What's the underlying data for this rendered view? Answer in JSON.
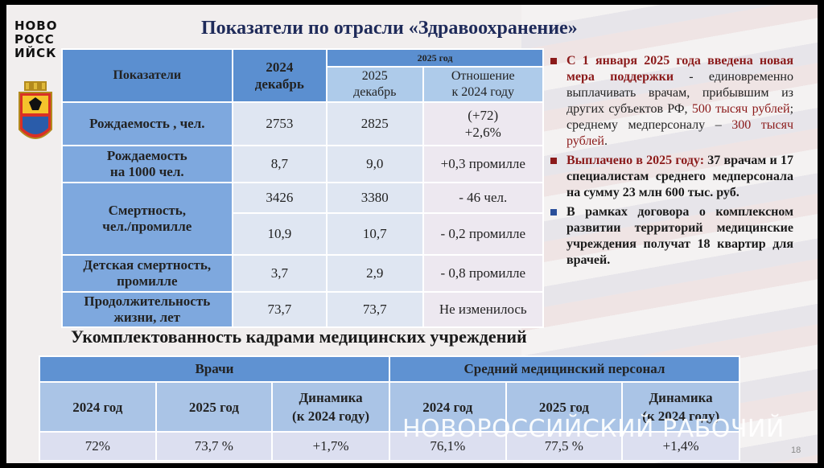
{
  "logo": {
    "lines": [
      "НОВО",
      "РОСС",
      "ИЙСК"
    ]
  },
  "title": "Показатели по отрасли «Здравоохранение»",
  "main_table": {
    "header": {
      "indicators": "Показатели",
      "col_2024": [
        "2024",
        "декабрь"
      ],
      "year_2025_group": "2025 год",
      "col_2025": [
        "2025",
        "декабрь"
      ],
      "col_change": [
        "Отношение",
        "к 2024 году"
      ]
    },
    "rows": [
      {
        "label": [
          "Рождаемость , чел."
        ],
        "v2024": "2753",
        "v2025": "2825",
        "change": [
          "(+72)",
          "+2,6%"
        ]
      },
      {
        "label": [
          "Рождаемость",
          "на 1000 чел."
        ],
        "v2024": "8,7",
        "v2025": "9,0",
        "change": [
          "+0,3 промилле"
        ]
      },
      {
        "label": [
          "Смертность,",
          "чел./промилле"
        ],
        "v2024": "3426",
        "v2025": "3380",
        "change": [
          "- 46 чел."
        ],
        "v2024b": "10,9",
        "v2025b": "10,7",
        "changeb": "- 0,2 промилле"
      },
      {
        "label": [
          "Детская смертность,",
          "промилле"
        ],
        "v2024": "3,7",
        "v2025": "2,9",
        "change": [
          "- 0,8 промилле"
        ]
      },
      {
        "label": [
          "Продолжительность",
          "жизни, лет"
        ],
        "v2024": "73,7",
        "v2025": "73,7",
        "change": [
          "Не изменилось"
        ]
      }
    ]
  },
  "bullets": [
    {
      "bold": "С 1 января 2025 года введена новая мера поддержки",
      "rest": " - единовременно выплачивать врачам, прибывшим из других субъектов РФ, ",
      "red_a": "500 тысяч рублей",
      "mid": "; среднему медперсоналу – ",
      "red_b": "300 тысяч рублей",
      "end": "."
    },
    {
      "red": "Выплачено в 2025 году:",
      "dark": " 37 врачам и 17 специалистам среднего медперсонала на сумму 23 млн 600 тыс. руб."
    },
    {
      "dark": "В рамках договора о комплексном развитии территорий медицинские учреждения получат 18 квартир для врачей."
    }
  ],
  "subtitle": "Укомплектованность кадрами медицинских учреждений",
  "staff_table": {
    "groups": [
      "Врачи",
      "Средний медицинский персонал"
    ],
    "headers": [
      [
        "2024 год"
      ],
      [
        "2025 год"
      ],
      [
        "Динамика",
        "(к 2024 году)"
      ],
      [
        "2024 год"
      ],
      [
        "2025 год"
      ],
      [
        "Динамика",
        "(к 2024 году)"
      ]
    ],
    "values": [
      "72%",
      "73,7 %",
      "+1,7%",
      "76,1%",
      "77,5 %",
      "+1,4%"
    ]
  },
  "watermark": "НОВОРОССИЙСКИЙ РАБОЧИЙ",
  "page_number": "18",
  "colors": {
    "accent_blue": "#5b8fd0",
    "bullet_red": "#8b1a1a",
    "title_navy": "#1f2b5a"
  }
}
